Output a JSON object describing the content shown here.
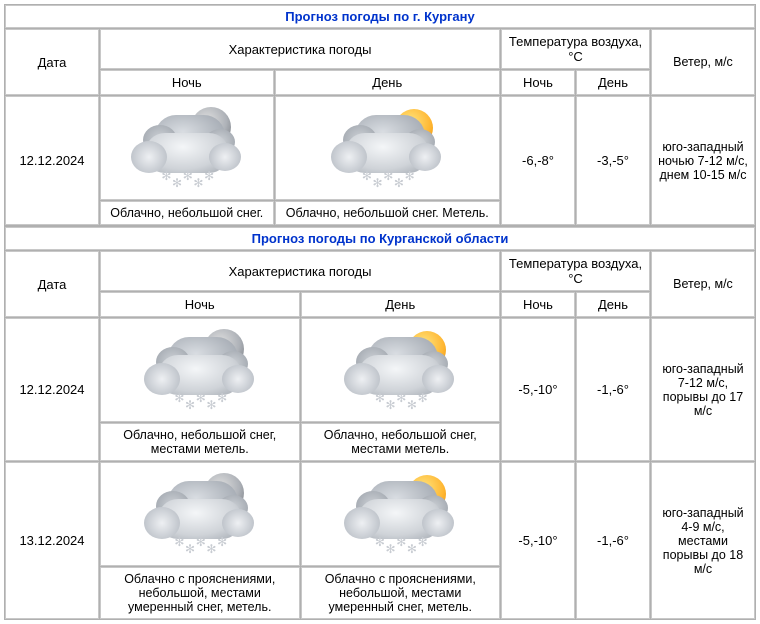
{
  "sections": [
    {
      "title": "Прогноз погоды по г. Кургану",
      "headers": {
        "date": "Дата",
        "char": "Характеристика погоды",
        "temp": "Температура воздуха, °С",
        "wind": "Ветер, м/с",
        "night": "Ночь",
        "day": "День"
      },
      "rows": [
        {
          "date": "12.12.2024",
          "night_icon": "cloud-moon-snow",
          "day_icon": "cloud-sun-snow",
          "night_desc": "Облачно, небольшой снег.",
          "day_desc": "Облачно, небольшой снег. Метель.",
          "temp_night": "-6,-8°",
          "temp_day": "-3,-5°",
          "wind": "юго-западный ночью 7-12 м/с, днем 10-15 м/с"
        }
      ]
    },
    {
      "title": "Прогноз погоды по Курганской области",
      "headers": {
        "date": "Дата",
        "char": "Характеристика погоды",
        "temp": "Температура воздуха, °С",
        "wind": "Ветер, м/с",
        "night": "Ночь",
        "day": "День"
      },
      "rows": [
        {
          "date": "12.12.2024",
          "night_icon": "cloud-moon-snow",
          "day_icon": "cloud-sun-snow",
          "night_desc": "Облачно, небольшой снег, местами метель.",
          "day_desc": "Облачно, небольшой снег, местами метель.",
          "temp_night": "-5,-10°",
          "temp_day": "-1,-6°",
          "wind": "юго-западный 7-12 м/с, порывы до 17 м/с"
        },
        {
          "date": "13.12.2024",
          "night_icon": "cloud-moon-snow",
          "day_icon": "cloud-sun-snow",
          "night_desc": "Облачно с прояснениями, небольшой, местами умеренный снег, метель.",
          "day_desc": "Облачно с прояснениями, небольшой, местами умеренный снег, метель.",
          "temp_night": "-5,-10°",
          "temp_day": "-1,-6°",
          "wind": "юго-западный 4-9 м/с, местами порывы до 18 м/с"
        }
      ]
    }
  ]
}
